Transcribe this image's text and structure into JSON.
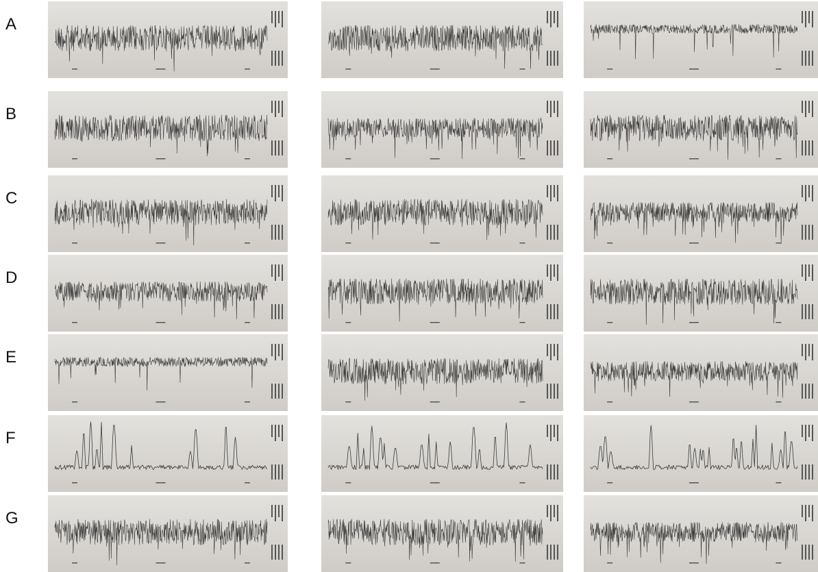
{
  "figure": {
    "rows": [
      {
        "label": "A",
        "style": [
          "dense",
          "dense",
          "sparse-high"
        ]
      },
      {
        "label": "B",
        "style": [
          "dense",
          "medium",
          "dense"
        ]
      },
      {
        "label": "C",
        "style": [
          "dense",
          "dense",
          "medium"
        ]
      },
      {
        "label": "D",
        "style": [
          "medium",
          "dense",
          "dense"
        ]
      },
      {
        "label": "E",
        "style": [
          "sparse-high",
          "dense",
          "medium"
        ]
      },
      {
        "label": "F",
        "style": [
          "peaks",
          "peaks",
          "peaks"
        ]
      },
      {
        "label": "G",
        "style": [
          "dense",
          "dense",
          "medium"
        ]
      }
    ],
    "colors": {
      "paper": "#e3e1dd",
      "paper_shadow": "#cfccc8",
      "trace": "#3a3a3a",
      "annotation": "#555555"
    }
  }
}
